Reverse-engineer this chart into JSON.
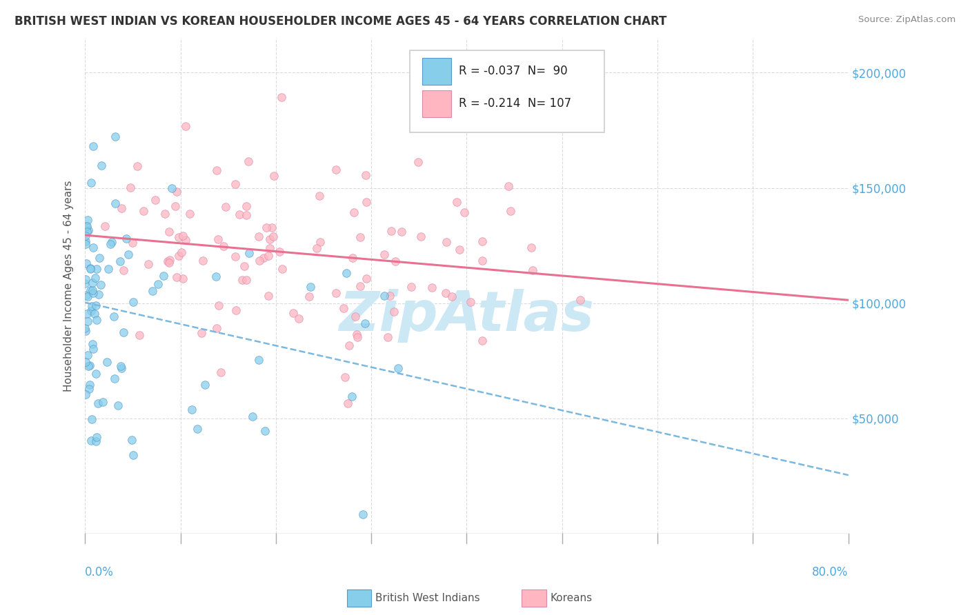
{
  "title": "BRITISH WEST INDIAN VS KOREAN HOUSEHOLDER INCOME AGES 45 - 64 YEARS CORRELATION CHART",
  "source": "Source: ZipAtlas.com",
  "ylabel": "Householder Income Ages 45 - 64 years",
  "xlim": [
    0.0,
    0.8
  ],
  "ylim": [
    0,
    215000
  ],
  "ytick_values": [
    0,
    50000,
    100000,
    150000,
    200000
  ],
  "right_ytick_values": [
    200000,
    150000,
    100000,
    50000
  ],
  "legend_r1_val": "-0.037",
  "legend_n1_val": "90",
  "legend_r2_val": "-0.214",
  "legend_n2_val": "107",
  "scatter_bwi_color": "#87CEEB",
  "scatter_bwi_edge": "#5599CC",
  "scatter_kor_color": "#FFB6C1",
  "scatter_kor_edge": "#DD88AA",
  "trendline_bwi_color": "#7AB8E0",
  "trendline_kor_color": "#E87090",
  "background_color": "#ffffff",
  "watermark": "ZipAtlas",
  "watermark_color": "#cce8f5",
  "grid_color": "#cccccc",
  "title_color": "#333333",
  "axis_label_color": "#4fa8e0",
  "ylabel_color": "#555555",
  "source_color": "#888888"
}
